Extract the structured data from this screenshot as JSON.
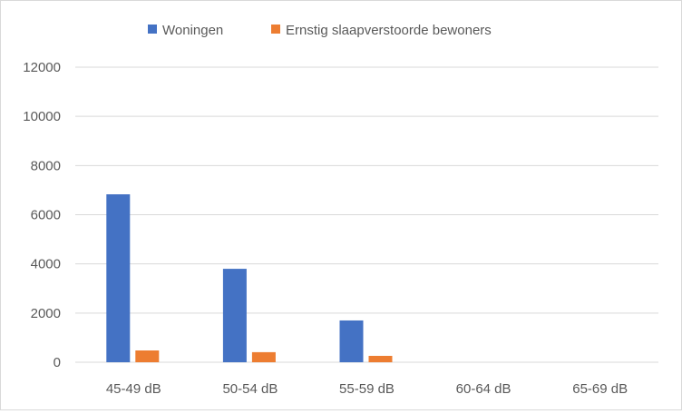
{
  "chart_data": {
    "type": "bar",
    "title": "",
    "xlabel": "",
    "ylabel": "",
    "categories": [
      "45-49 dB",
      "50-54 dB",
      "55-59 dB",
      "60-64 dB",
      "65-69 dB"
    ],
    "series": [
      {
        "name": "Woningen",
        "color": "#4472C4",
        "values": [
          6830,
          3800,
          1700,
          0,
          0
        ]
      },
      {
        "name": "Ernstig slaapverstoorde bewoners",
        "color": "#ED7D31",
        "values": [
          480,
          410,
          260,
          0,
          0
        ]
      }
    ],
    "ylim": [
      0,
      12000
    ],
    "yticks": [
      0,
      2000,
      4000,
      6000,
      8000,
      10000,
      12000
    ],
    "grid": true,
    "legend": "top"
  }
}
